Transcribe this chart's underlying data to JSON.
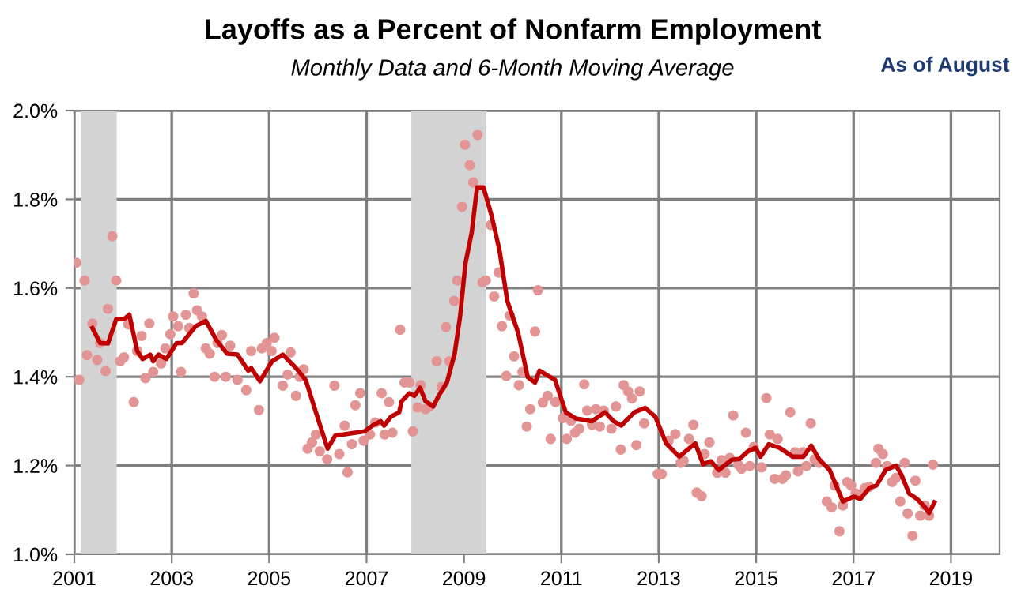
{
  "chart_data": {
    "type": "line",
    "title": "Layoffs as a Percent of Nonfarm Employment",
    "subtitle": "Monthly Data and 6-Month Moving Average",
    "annotations": [
      "As of August"
    ],
    "xlim": [
      2001,
      2020
    ],
    "xticks": [
      2001,
      2003,
      2005,
      2007,
      2009,
      2011,
      2013,
      2015,
      2017,
      2019
    ],
    "ylim": [
      1.0,
      2.0
    ],
    "yticks": [
      {
        "value": 1.0,
        "label": "1.0%"
      },
      {
        "value": 1.2,
        "label": "1.2%"
      },
      {
        "value": 1.4,
        "label": "1.4%"
      },
      {
        "value": 1.6,
        "label": "1.6%"
      },
      {
        "value": 1.8,
        "label": "1.8%"
      },
      {
        "value": 2.0,
        "label": "2.0%"
      }
    ],
    "grid": true,
    "legend": false,
    "bands": [
      {
        "axis": "x",
        "from": 2001.13,
        "to": 2001.87,
        "color": "#d3d3d3"
      },
      {
        "axis": "x",
        "from": 2007.92,
        "to": 2009.46,
        "color": "#d3d3d3"
      }
    ],
    "series": [
      {
        "type": "scatter",
        "marker": "circle",
        "color": "#e39595",
        "x": [
          2001.04,
          2001.1,
          2001.21,
          2001.26,
          2001.37,
          2001.47,
          2001.53,
          2001.64,
          2001.69,
          2001.78,
          2001.86,
          2001.94,
          2002.02,
          2002.11,
          2002.22,
          2002.29,
          2002.38,
          2002.46,
          2002.54,
          2002.62,
          2002.78,
          2002.87,
          2002.97,
          2003.03,
          2003.13,
          2003.19,
          2003.29,
          2003.36,
          2003.45,
          2003.52,
          2003.62,
          2003.7,
          2003.78,
          2003.88,
          2003.94,
          2004.03,
          2004.11,
          2004.2,
          2004.35,
          2004.53,
          2004.63,
          2004.79,
          2004.85,
          2004.95,
          2005.05,
          2005.11,
          2005.28,
          2005.38,
          2005.44,
          2005.55,
          2005.63,
          2005.71,
          2005.79,
          2005.88,
          2005.96,
          2006.04,
          2006.19,
          2006.34,
          2006.44,
          2006.55,
          2006.61,
          2006.7,
          2006.77,
          2006.87,
          2006.94,
          2007.07,
          2007.18,
          2007.31,
          2007.37,
          2007.46,
          2007.53,
          2007.69,
          2007.78,
          2007.88,
          2007.95,
          2008.05,
          2008.11,
          2008.21,
          2008.29,
          2008.44,
          2008.54,
          2008.63,
          2008.7,
          2008.8,
          2008.86,
          2008.96,
          2009.02,
          2009.12,
          2009.19,
          2009.28,
          2009.38,
          2009.45,
          2009.55,
          2009.62,
          2009.71,
          2009.78,
          2009.87,
          2009.94,
          2010.03,
          2010.13,
          2010.2,
          2010.29,
          2010.36,
          2010.46,
          2010.52,
          2010.62,
          2010.72,
          2010.78,
          2010.88,
          2011.03,
          2011.11,
          2011.2,
          2011.28,
          2011.37,
          2011.47,
          2011.53,
          2011.63,
          2011.71,
          2011.79,
          2011.87,
          2012.03,
          2012.12,
          2012.22,
          2012.28,
          2012.37,
          2012.45,
          2012.54,
          2012.61,
          2012.7,
          2012.98,
          2013.06,
          2013.2,
          2013.34,
          2013.45,
          2013.51,
          2013.62,
          2013.71,
          2013.78,
          2013.88,
          2013.94,
          2014.04,
          2014.2,
          2014.29,
          2014.37,
          2014.46,
          2014.53,
          2014.63,
          2014.7,
          2014.79,
          2014.87,
          2014.95,
          2015.11,
          2015.21,
          2015.28,
          2015.38,
          2015.44,
          2015.54,
          2015.61,
          2015.7,
          2015.8,
          2015.86,
          2015.96,
          2016.03,
          2016.12,
          2016.2,
          2016.29,
          2016.45,
          2016.55,
          2016.61,
          2016.71,
          2016.78,
          2016.87,
          2016.95,
          2017.04,
          2017.14,
          2017.23,
          2017.32,
          2017.46,
          2017.51,
          2017.6,
          2017.69,
          2017.79,
          2017.87,
          2017.96,
          2018.05,
          2018.11,
          2018.21,
          2018.27,
          2018.37,
          2018.46,
          2018.55,
          2018.63
        ],
        "values": [
          1.657,
          1.393,
          1.617,
          1.449,
          1.52,
          1.438,
          1.476,
          1.413,
          1.553,
          1.717,
          1.617,
          1.435,
          1.444,
          1.518,
          1.343,
          1.458,
          1.492,
          1.397,
          1.52,
          1.411,
          1.43,
          1.464,
          1.496,
          1.536,
          1.514,
          1.411,
          1.54,
          1.51,
          1.588,
          1.55,
          1.536,
          1.464,
          1.452,
          1.4,
          1.476,
          1.494,
          1.4,
          1.47,
          1.393,
          1.37,
          1.458,
          1.325,
          1.464,
          1.476,
          1.458,
          1.488,
          1.38,
          1.405,
          1.455,
          1.357,
          1.4,
          1.417,
          1.238,
          1.252,
          1.27,
          1.232,
          1.214,
          1.38,
          1.226,
          1.29,
          1.185,
          1.248,
          1.336,
          1.363,
          1.256,
          1.27,
          1.297,
          1.363,
          1.27,
          1.343,
          1.274,
          1.506,
          1.387,
          1.387,
          1.277,
          1.331,
          1.381,
          1.327,
          1.333,
          1.435,
          1.377,
          1.512,
          1.435,
          1.571,
          1.617,
          1.783,
          1.923,
          1.877,
          1.838,
          1.945,
          1.613,
          1.617,
          1.742,
          1.581,
          1.635,
          1.514,
          1.402,
          1.538,
          1.446,
          1.381,
          1.411,
          1.288,
          1.327,
          1.502,
          1.595,
          1.342,
          1.357,
          1.26,
          1.343,
          1.307,
          1.26,
          1.301,
          1.274,
          1.283,
          1.383,
          1.324,
          1.292,
          1.327,
          1.288,
          1.324,
          1.283,
          1.333,
          1.236,
          1.381,
          1.367,
          1.351,
          1.246,
          1.367,
          1.295,
          1.181,
          1.181,
          1.256,
          1.271,
          1.206,
          1.211,
          1.26,
          1.292,
          1.139,
          1.131,
          1.226,
          1.252,
          1.184,
          1.212,
          1.184,
          1.217,
          1.313,
          1.202,
          1.193,
          1.274,
          1.199,
          1.242,
          1.196,
          1.352,
          1.27,
          1.17,
          1.26,
          1.17,
          1.178,
          1.32,
          1.23,
          1.187,
          1.23,
          1.199,
          1.295,
          1.214,
          1.206,
          1.119,
          1.106,
          1.155,
          1.052,
          1.11,
          1.163,
          1.155,
          1.137,
          1.135,
          1.149,
          1.152,
          1.206,
          1.238,
          1.226,
          1.199,
          1.163,
          1.172,
          1.119,
          1.206,
          1.092,
          1.042,
          1.166,
          1.087,
          1.11,
          1.087,
          1.202
        ]
      },
      {
        "type": "line",
        "color": "#c00000",
        "x": [
          2001.37,
          2001.53,
          2001.69,
          2001.86,
          2002.02,
          2002.13,
          2002.29,
          2002.4,
          2002.56,
          2002.62,
          2002.73,
          2002.89,
          2003.1,
          2003.21,
          2003.49,
          2003.7,
          2003.92,
          2004.14,
          2004.35,
          2004.57,
          2004.63,
          2004.81,
          2005.06,
          2005.28,
          2005.55,
          2005.75,
          2005.96,
          2006.2,
          2006.36,
          2006.53,
          2006.96,
          2007.12,
          2007.29,
          2007.36,
          2007.5,
          2007.67,
          2007.72,
          2007.88,
          2007.98,
          2008.1,
          2008.21,
          2008.37,
          2008.48,
          2008.65,
          2008.81,
          2008.92,
          2009.03,
          2009.16,
          2009.27,
          2009.4,
          2009.57,
          2009.73,
          2009.89,
          2010.11,
          2010.31,
          2010.46,
          2010.55,
          2010.87,
          2011.09,
          2011.3,
          2011.63,
          2011.9,
          2012.07,
          2012.23,
          2012.5,
          2012.72,
          2012.93,
          2013.15,
          2013.42,
          2013.75,
          2013.91,
          2014.07,
          2014.23,
          2014.5,
          2014.66,
          2014.83,
          2014.99,
          2015.09,
          2015.26,
          2015.48,
          2015.75,
          2015.97,
          2016.13,
          2016.3,
          2016.51,
          2016.78,
          2017.0,
          2017.14,
          2017.33,
          2017.47,
          2017.66,
          2017.87,
          2017.98,
          2018.14,
          2018.3,
          2018.46,
          2018.55,
          2018.66
        ],
        "values": [
          1.51,
          1.476,
          1.475,
          1.53,
          1.53,
          1.54,
          1.458,
          1.44,
          1.45,
          1.435,
          1.45,
          1.44,
          1.476,
          1.476,
          1.514,
          1.526,
          1.482,
          1.452,
          1.45,
          1.414,
          1.42,
          1.39,
          1.435,
          1.45,
          1.42,
          1.393,
          1.32,
          1.238,
          1.268,
          1.27,
          1.277,
          1.29,
          1.3,
          1.29,
          1.31,
          1.32,
          1.345,
          1.363,
          1.357,
          1.375,
          1.345,
          1.333,
          1.357,
          1.387,
          1.453,
          1.536,
          1.655,
          1.726,
          1.827,
          1.827,
          1.762,
          1.685,
          1.571,
          1.5,
          1.399,
          1.387,
          1.414,
          1.393,
          1.32,
          1.306,
          1.3,
          1.32,
          1.3,
          1.29,
          1.32,
          1.33,
          1.31,
          1.25,
          1.22,
          1.25,
          1.203,
          1.21,
          1.19,
          1.213,
          1.215,
          1.232,
          1.24,
          1.22,
          1.248,
          1.24,
          1.22,
          1.22,
          1.245,
          1.213,
          1.19,
          1.119,
          1.13,
          1.125,
          1.15,
          1.155,
          1.19,
          1.2,
          1.18,
          1.137,
          1.125,
          1.107,
          1.093,
          1.117
        ]
      }
    ]
  }
}
